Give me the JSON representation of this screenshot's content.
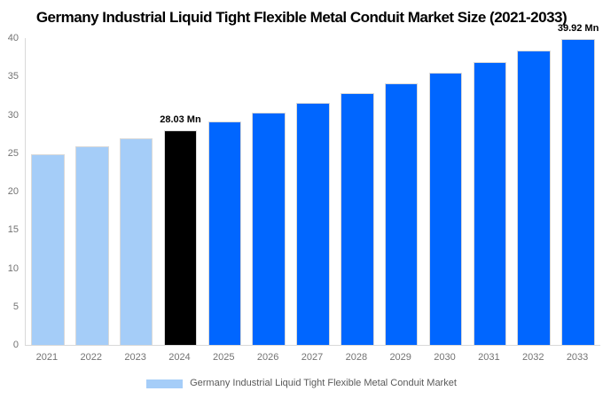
{
  "chart_data": {
    "type": "bar",
    "title": "Germany Industrial Liquid Tight Flexible Metal Conduit Market Size (2021-2033)",
    "categories": [
      "2021",
      "2022",
      "2023",
      "2024",
      "2025",
      "2026",
      "2027",
      "2028",
      "2029",
      "2030",
      "2031",
      "2032",
      "2033"
    ],
    "values": [
      24.91,
      25.91,
      26.95,
      28.03,
      29.15,
      30.32,
      31.54,
      32.8,
      34.12,
      35.48,
      36.91,
      38.39,
      39.92
    ],
    "unit": "Mn",
    "bar_colors": [
      "#a5cdf8",
      "#a5cdf8",
      "#a5cdf8",
      "#000000",
      "#0066ff",
      "#0066ff",
      "#0066ff",
      "#0066ff",
      "#0066ff",
      "#0066ff",
      "#0066ff",
      "#0066ff",
      "#0066ff"
    ],
    "xlabel": "",
    "ylabel": "",
    "ylim": [
      0,
      40
    ],
    "yticks": [
      0,
      5,
      10,
      15,
      20,
      25,
      30,
      35,
      40
    ],
    "grid": false,
    "legend_position": "bottom",
    "annotations": [
      {
        "index": 3,
        "text": "28.03 Mn"
      },
      {
        "index": 12,
        "text": "39.92 Mn"
      }
    ],
    "legend": {
      "label": "Germany Industrial Liquid Tight Flexible Metal Conduit Market",
      "swatch_color": "#a5cdf8"
    }
  },
  "colors": {
    "light_blue": "#a5cdf8",
    "accent_blue": "#0066ff",
    "highlight_black": "#000000",
    "bar_edge": "#d9d9d9",
    "axis_line": "#d9d9d9",
    "tick_text": "#737373",
    "legend_text": "#595959",
    "title_text": "#000000",
    "background": "#ffffff"
  }
}
